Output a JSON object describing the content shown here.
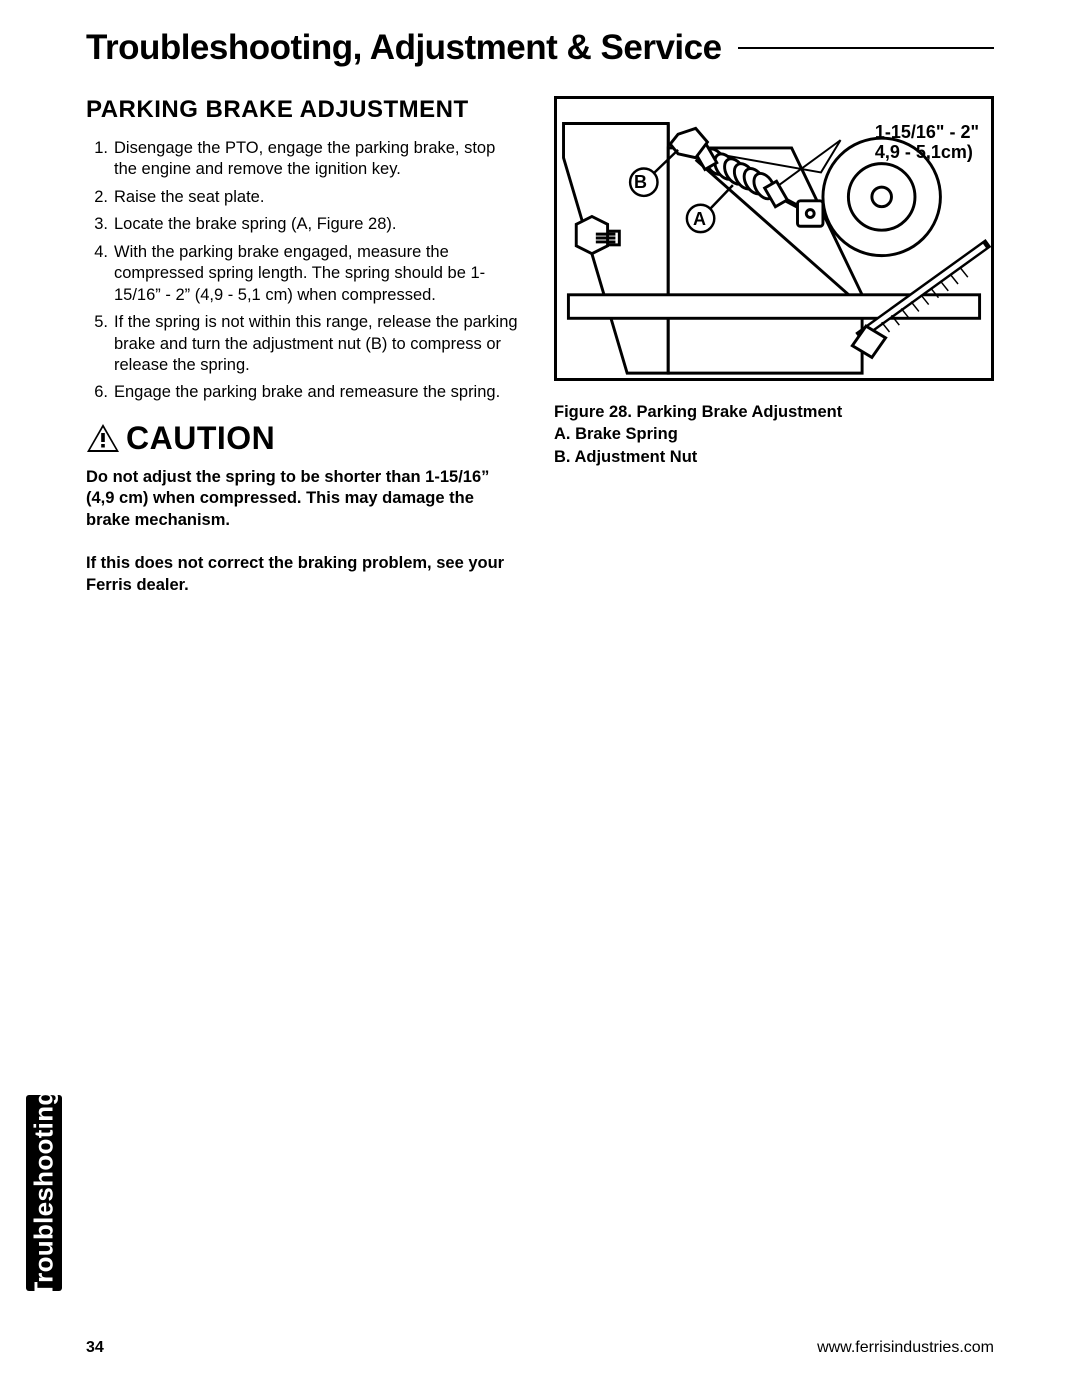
{
  "chapter_title": "Troubleshooting, Adjustment & Service",
  "section_heading": "PARKING BRAKE ADJUSTMENT",
  "steps": [
    "Disengage the PTO, engage the parking brake, stop the engine and remove the ignition key.",
    "Raise the seat plate.",
    "Locate the brake spring (A, Figure 28).",
    "With the parking brake engaged, measure the compressed spring length.  The spring should be 1-15/16” - 2” (4,9 - 5,1 cm) when compressed.",
    "If the spring is not within this range, release the parking brake and turn the adjustment nut (B) to compress or release the spring.",
    "Engage the parking brake and remeasure the spring."
  ],
  "caution_word": "CAUTION",
  "caution_text": "Do not adjust the spring to be shorter than 1-15/16” (4,9 cm) when compressed. This may damage the brake mechanism.",
  "dealer_text": "If this does not correct the braking problem, see your Ferris dealer.",
  "figure": {
    "dim_line1": "1-15/16\" - 2\"",
    "dim_line2": "4,9 - 5,1cm)",
    "label_A": "A",
    "label_B": "B",
    "caption_title": "Figure 28.  Parking Brake Adjustment",
    "caption_a": "A.  Brake Spring",
    "caption_b": "B.  Adjustment Nut"
  },
  "side_tab": "Troubleshooting",
  "footer": {
    "page": "34",
    "url": "www.ferrisindustries.com"
  }
}
